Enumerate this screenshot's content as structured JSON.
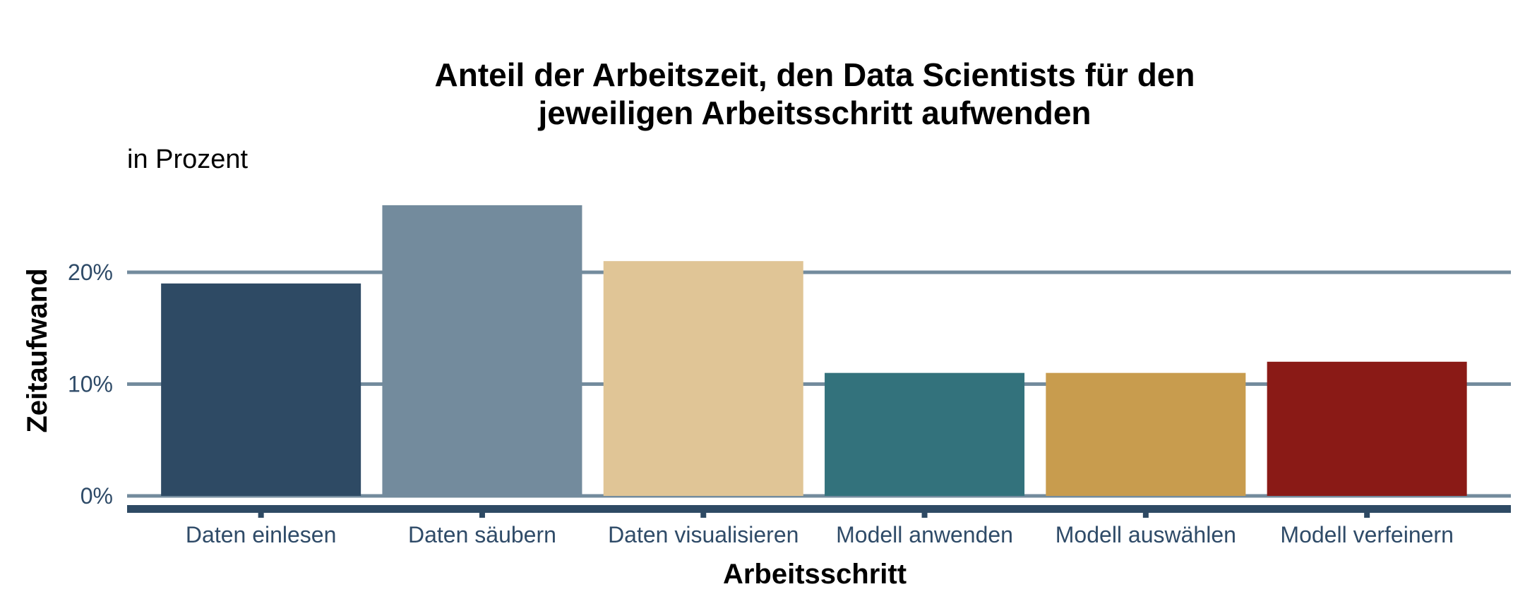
{
  "chart_data": {
    "type": "bar",
    "title_lines": [
      "Anteil der Arbeitszeit, den Data Scientists für den",
      "jeweiligen Arbeitsschritt aufwenden"
    ],
    "subtitle": "in Prozent",
    "xlabel": "Arbeitsschritt",
    "ylabel": "Zeitaufwand",
    "categories": [
      "Daten einlesen",
      "Daten säubern",
      "Daten visualisieren",
      "Modell anwenden",
      "Modell auswählen",
      "Modell verfeinern"
    ],
    "values": [
      19,
      26,
      21,
      11,
      11,
      12
    ],
    "colors": [
      "#2e4a64",
      "#738b9d",
      "#e0c596",
      "#33727c",
      "#c89c4e",
      "#8a1a16"
    ],
    "yticks": [
      0,
      10,
      20
    ],
    "ytick_labels": [
      "0%",
      "10%",
      "20%"
    ],
    "ylim": [
      0,
      27
    ],
    "grid": true,
    "legend": "none"
  }
}
